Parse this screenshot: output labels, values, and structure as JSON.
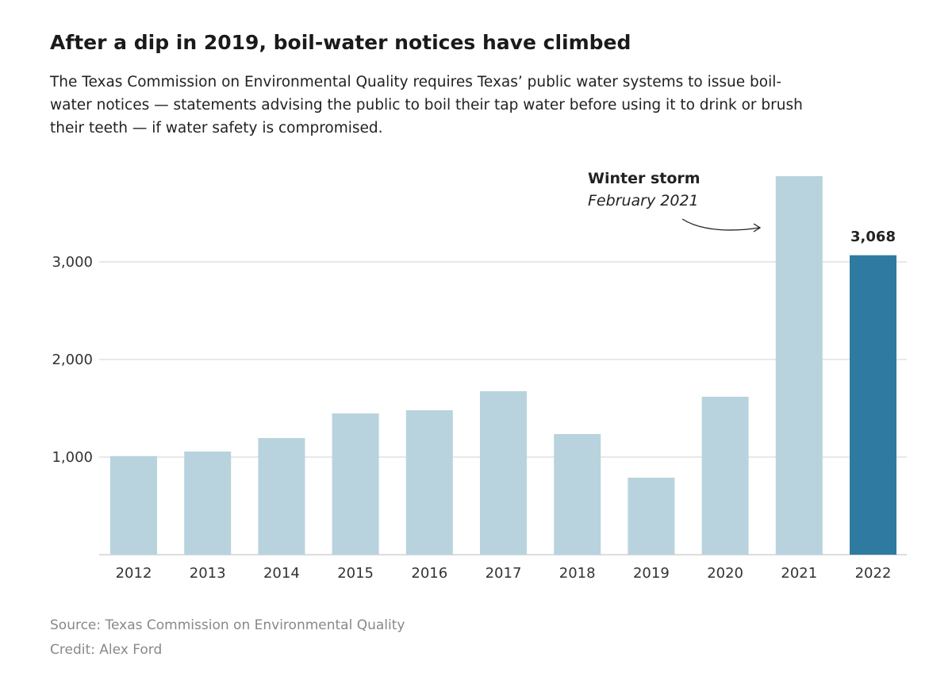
{
  "title": "After a dip in 2019, boil-water notices have climbed",
  "subtitle_lines": [
    "The Texas Commission on Environmental Quality requires Texas’ public water systems to issue boil-",
    "water notices — statements advising the public to boil their tap water before using it to drink or brush",
    "their teeth — if water safety is compromised."
  ],
  "source": "Source: Texas Commission on Environmental Quality",
  "credit": "Credit: Alex Ford",
  "chart_data": {
    "type": "bar",
    "categories": [
      "2012",
      "2013",
      "2014",
      "2015",
      "2016",
      "2017",
      "2018",
      "2019",
      "2020",
      "2021",
      "2022"
    ],
    "values": [
      1010,
      1057,
      1195,
      1447,
      1480,
      1675,
      1236,
      789,
      1618,
      3878,
      3068
    ],
    "ylim": [
      0,
      4000
    ],
    "yticks": [
      1000,
      2000,
      3000
    ],
    "ytick_labels": [
      "1,000",
      "2,000",
      "3,000"
    ],
    "grid": true,
    "highlight_category": "2022",
    "highlight_label": "3,068",
    "annotation": {
      "category": "2021",
      "title": "Winter storm",
      "subtitle": "February 2021"
    },
    "colors": {
      "bar": "#b8d3de",
      "highlight": "#2e7aa1",
      "grid": "#d0d0d0"
    }
  }
}
